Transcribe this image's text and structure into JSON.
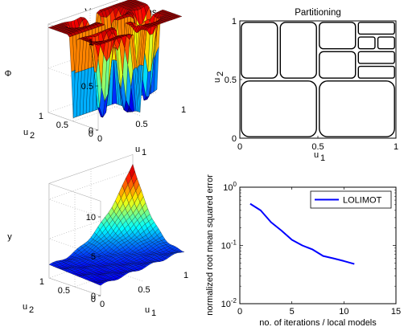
{
  "chart_data": [
    {
      "type": "surface",
      "title": "Validity Functions",
      "xlabel": "u",
      "xlabel_sub": "1",
      "ylabel": "u",
      "ylabel_sub": "2",
      "zlabel": "Φ",
      "xlim": [
        0,
        1
      ],
      "ylim": [
        0,
        1
      ],
      "zlim": [
        0,
        1
      ],
      "x_ticks": [
        "0",
        "0.5",
        "1"
      ],
      "y_ticks": [
        "0",
        "0.5",
        "1"
      ],
      "z_ticks": [
        "0",
        "0.5",
        "1"
      ],
      "colormap": "jet",
      "grid": true
    },
    {
      "type": "partition",
      "title": "Partitioning",
      "xlabel": "u",
      "xlabel_sub": "1",
      "ylabel": "u",
      "ylabel_sub": "2",
      "xlim": [
        0,
        1
      ],
      "ylim": [
        0,
        1
      ],
      "x_ticks": [
        "0",
        "0.5",
        "1"
      ],
      "y_ticks": [
        "0",
        "0.5",
        "1"
      ],
      "cells": [
        [
          0,
          0,
          0.5,
          0.5
        ],
        [
          0.5,
          0,
          1,
          0.5
        ],
        [
          0,
          0.5,
          0.25,
          1
        ],
        [
          0.25,
          0.5,
          0.5,
          1
        ],
        [
          0.5,
          0.5,
          0.75,
          0.75
        ],
        [
          0.75,
          0.5,
          1,
          0.625
        ],
        [
          0.75,
          0.625,
          1,
          0.75
        ],
        [
          0.5,
          0.75,
          0.75,
          1
        ],
        [
          0.75,
          0.75,
          0.875,
          0.875
        ],
        [
          0.875,
          0.75,
          1,
          0.875
        ],
        [
          0.75,
          0.875,
          1,
          1
        ]
      ]
    },
    {
      "type": "surface",
      "title": "",
      "xlabel": "u",
      "xlabel_sub": "1",
      "ylabel": "u",
      "ylabel_sub": "2",
      "zlabel": "y",
      "xlim": [
        0,
        1
      ],
      "ylim": [
        0,
        1
      ],
      "zlim": [
        0,
        10
      ],
      "x_ticks": [
        "0",
        "0.5",
        "1"
      ],
      "y_ticks": [
        "0",
        "0.5",
        "1"
      ],
      "z_ticks": [
        "0",
        "5",
        "10"
      ],
      "colormap": "jet",
      "grid": true
    },
    {
      "type": "line",
      "title": "",
      "xlabel": "no. of iterations / local models",
      "ylabel": "normalized root mean squared error",
      "xlim": [
        0,
        15
      ],
      "ylim": [
        0.01,
        1
      ],
      "yscale": "log",
      "x_ticks": [
        "0",
        "5",
        "10",
        "15"
      ],
      "y_tick_base": "10",
      "y_tick_exps": [
        "-2",
        "-1",
        "0"
      ],
      "legend": "top-right",
      "series": [
        {
          "name": "LOLIMOT",
          "color": "#0000ff",
          "x": [
            1,
            2,
            3,
            4,
            5,
            6,
            7,
            8,
            9,
            10,
            11
          ],
          "y": [
            0.52,
            0.4,
            0.25,
            0.18,
            0.125,
            0.1,
            0.085,
            0.066,
            0.06,
            0.054,
            0.048
          ]
        }
      ]
    }
  ]
}
